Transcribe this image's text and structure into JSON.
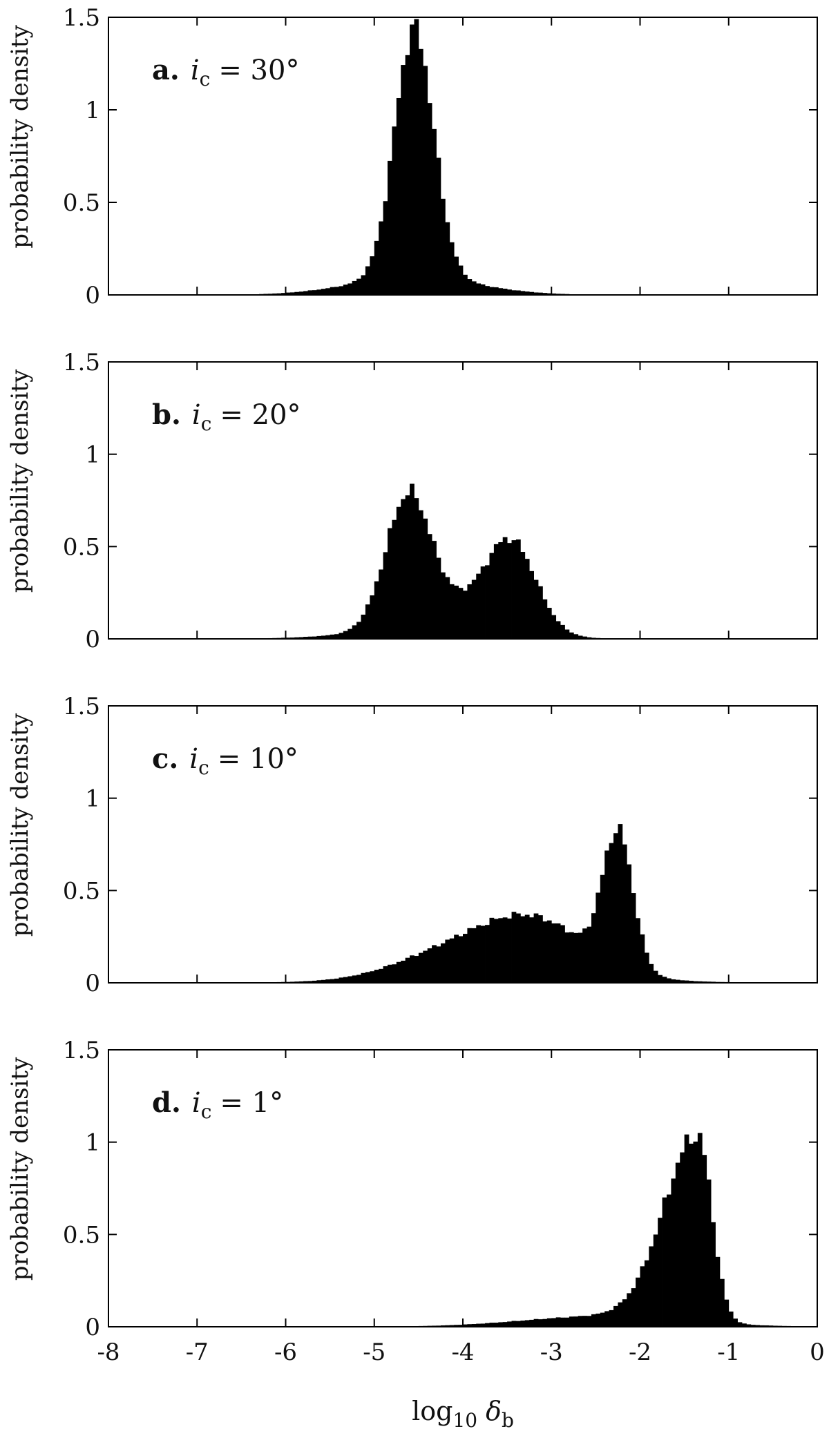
{
  "chart_data": [
    {
      "type": "bar",
      "panel_letter": "a.",
      "param_symbol": "i",
      "param_sub": "c",
      "param_value": "= 30°",
      "ylabel": "probability density",
      "xlim": [
        -8,
        0
      ],
      "ylim": [
        0,
        1.5
      ],
      "y_ticks": [
        "0",
        "0.5",
        "1",
        "1.5"
      ],
      "bin_width": 0.05,
      "peaks": [
        {
          "center": -4.55,
          "width": 0.22,
          "height": 1.4
        }
      ],
      "tails": [
        {
          "center": -4.55,
          "width": 0.7,
          "height": 0.1
        }
      ],
      "peak_value": 1.49,
      "grid": false
    },
    {
      "type": "bar",
      "panel_letter": "b.",
      "param_symbol": "i",
      "param_sub": "c",
      "param_value": "= 20°",
      "ylabel": "probability density",
      "xlim": [
        -8,
        0
      ],
      "ylim": [
        0,
        1.5
      ],
      "y_ticks": [
        "0",
        "0.5",
        "1",
        "1.5"
      ],
      "bin_width": 0.05,
      "peaks": [
        {
          "center": -4.62,
          "width": 0.25,
          "height": 0.75
        },
        {
          "center": -3.45,
          "width": 0.28,
          "height": 0.5
        },
        {
          "center": -4.05,
          "width": 0.5,
          "height": 0.15
        }
      ],
      "tails": [
        {
          "center": -4.4,
          "width": 0.8,
          "height": 0.05
        }
      ],
      "peak_value": 0.84,
      "grid": false
    },
    {
      "type": "bar",
      "panel_letter": "c.",
      "param_symbol": "i",
      "param_sub": "c",
      "param_value": "= 10°",
      "ylabel": "probability density",
      "xlim": [
        -8,
        0
      ],
      "ylim": [
        0,
        1.5
      ],
      "y_ticks": [
        "0",
        "0.5",
        "1",
        "1.5"
      ],
      "bin_width": 0.05,
      "peaks": [
        {
          "center": -2.25,
          "width": 0.17,
          "height": 0.72
        },
        {
          "center": -3.2,
          "width": 0.6,
          "height": 0.3
        },
        {
          "center": -4.2,
          "width": 0.6,
          "height": 0.12
        }
      ],
      "tails": [
        {
          "center": -3.5,
          "width": 1.2,
          "height": 0.03
        }
      ],
      "peak_value": 0.86,
      "grid": false
    },
    {
      "type": "bar",
      "panel_letter": "d.",
      "param_symbol": "i",
      "param_sub": "c",
      "param_value": "= 1°",
      "ylabel": "probability density",
      "xlim": [
        -8,
        0
      ],
      "ylim": [
        0,
        1.5
      ],
      "y_ticks": [
        "0",
        "0.5",
        "1",
        "1.5"
      ],
      "x_ticks": [
        "-8",
        "-7",
        "-6",
        "-5",
        "-4",
        "-3",
        "-2",
        "-1",
        "0"
      ],
      "xlabel_main": "log",
      "xlabel_sub": "10",
      "xlabel_var": "δ",
      "xlabel_var_sub": "b",
      "bin_width": 0.05,
      "peaks": [],
      "skewed_peak": {
        "mode": -1.35,
        "left_width": 0.38,
        "right_width": 0.16,
        "height": 1.05
      },
      "tails": [
        {
          "center": -2.4,
          "width": 0.9,
          "height": 0.06
        }
      ],
      "peak_value": 1.05,
      "grid": false
    }
  ]
}
